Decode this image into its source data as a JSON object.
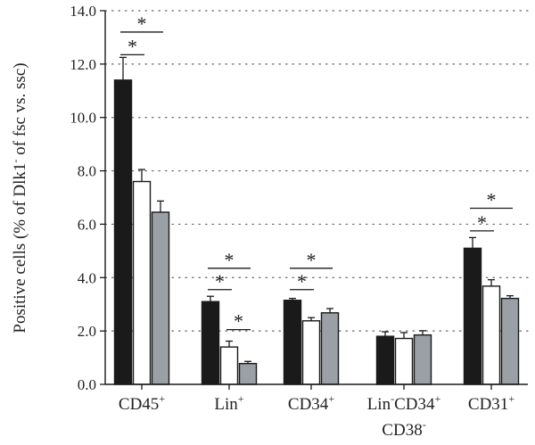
{
  "chart_data": {
    "type": "bar",
    "title": "",
    "ylabel": "Positive cells (% of Dlk1",
    "ylabel_sup": "-",
    "ylabel_rest": " of fsc vs. ssc)",
    "ylim": [
      0,
      14
    ],
    "yticks": [
      "0.0",
      "2.0",
      "4.0",
      "6.0",
      "8.0",
      "10.0",
      "12.0",
      "14.0"
    ],
    "ytick_values": [
      0,
      2,
      4,
      6,
      8,
      10,
      12,
      14
    ],
    "grid": "horizontal-dotted",
    "categories": [
      {
        "parts": [
          {
            "t": "CD45"
          },
          {
            "t": "+",
            "sup": true
          }
        ]
      },
      {
        "parts": [
          {
            "t": "Lin"
          },
          {
            "t": "+",
            "sup": true
          }
        ]
      },
      {
        "parts": [
          {
            "t": "CD34"
          },
          {
            "t": "+",
            "sup": true
          }
        ]
      },
      {
        "parts": [
          {
            "t": "Lin"
          },
          {
            "t": "-",
            "sup": true
          },
          {
            "t": "CD34"
          },
          {
            "t": "+",
            "sup": true
          }
        ],
        "line2": [
          {
            "t": "CD38"
          },
          {
            "t": "-",
            "sup": true
          }
        ]
      },
      {
        "parts": [
          {
            "t": "CD31"
          },
          {
            "t": "+",
            "sup": true
          }
        ]
      }
    ],
    "series": [
      {
        "fill": "#1a1a1a",
        "values": [
          11.4,
          3.1,
          3.15,
          1.8,
          5.1
        ],
        "errors": [
          0.85,
          0.2,
          0.07,
          0.17,
          0.4
        ]
      },
      {
        "fill": "#ffffff",
        "values": [
          7.6,
          1.4,
          2.38,
          1.72,
          3.68
        ],
        "errors": [
          0.45,
          0.22,
          0.12,
          0.22,
          0.24
        ]
      },
      {
        "fill": "#9aa0a6",
        "values": [
          6.45,
          0.78,
          2.68,
          1.85,
          3.22
        ],
        "errors": [
          0.42,
          0.08,
          0.16,
          0.16,
          0.1
        ]
      }
    ],
    "significance": [
      {
        "category": 0,
        "from": 0,
        "to": 1,
        "y": 12.35,
        "label": "*"
      },
      {
        "category": 0,
        "from": 0,
        "to": 2,
        "y": 13.2,
        "label": "*"
      },
      {
        "category": 1,
        "from": 0,
        "to": 1,
        "y": 3.55,
        "label": "*"
      },
      {
        "category": 1,
        "from": 0,
        "to": 2,
        "y": 4.35,
        "label": "*"
      },
      {
        "category": 1,
        "from": 1,
        "to": 2,
        "y": 2.05,
        "label": "*"
      },
      {
        "category": 2,
        "from": 0,
        "to": 1,
        "y": 3.55,
        "label": "*"
      },
      {
        "category": 2,
        "from": 0,
        "to": 2,
        "y": 4.35,
        "label": "*"
      },
      {
        "category": 4,
        "from": 0,
        "to": 1,
        "y": 5.75,
        "label": "*"
      },
      {
        "category": 4,
        "from": 0,
        "to": 2,
        "y": 6.6,
        "label": "*"
      }
    ]
  }
}
